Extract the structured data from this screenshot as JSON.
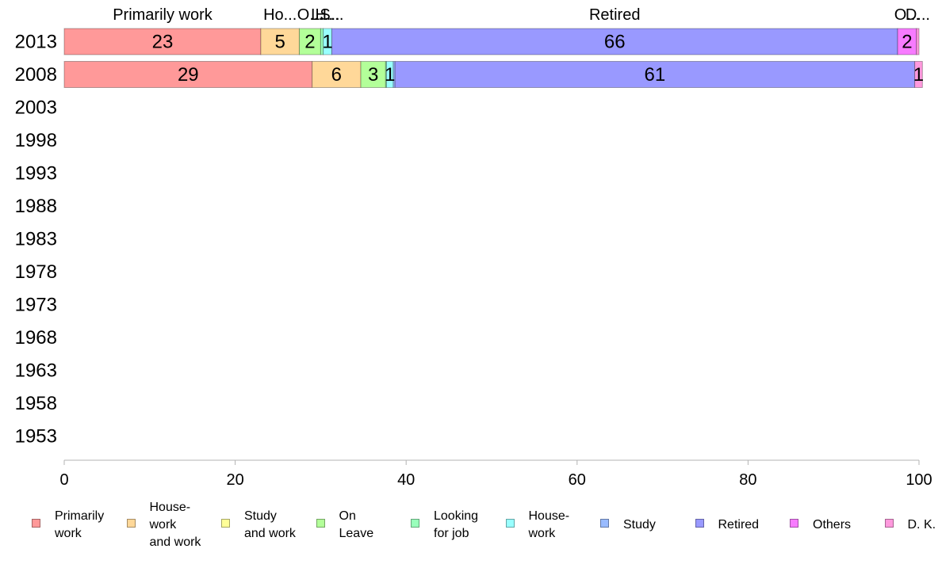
{
  "chart_data": {
    "type": "bar",
    "orientation": "horizontal",
    "stacked": true,
    "categories": [
      "2013",
      "2008",
      "2003",
      "1998",
      "1993",
      "1988",
      "1983",
      "1978",
      "1973",
      "1968",
      "1963",
      "1958",
      "1953"
    ],
    "series": [
      {
        "name": "Primarily work",
        "legend_label": "Primarily\nwork",
        "color": "#ff9999",
        "values": [
          23,
          29,
          null,
          null,
          null,
          null,
          null,
          null,
          null,
          null,
          null,
          null,
          null
        ],
        "labels": [
          "23",
          "29"
        ],
        "top_label": "Primarily work"
      },
      {
        "name": "House-work and work",
        "legend_label": "House-\nwork\nand work",
        "color": "#ffd899",
        "values": [
          4.5,
          5.7,
          null,
          null,
          null,
          null,
          null,
          null,
          null,
          null,
          null,
          null,
          null
        ],
        "labels": [
          "5",
          "6"
        ],
        "top_label": "Ho..."
      },
      {
        "name": "Study and work",
        "legend_label": "Study\nand work",
        "color": "#ffff99",
        "values": [
          0,
          0,
          null,
          null,
          null,
          null,
          null,
          null,
          null,
          null,
          null,
          null,
          null
        ],
        "labels": [
          "",
          ""
        ],
        "top_label": ""
      },
      {
        "name": "On Leave",
        "legend_label": "On\nLeave",
        "color": "#b3ff99",
        "values": [
          2.5,
          2.9,
          null,
          null,
          null,
          null,
          null,
          null,
          null,
          null,
          null,
          null,
          null
        ],
        "labels": [
          "2",
          "3"
        ],
        "top_label": "O..."
      },
      {
        "name": "Looking for job",
        "legend_label": "Looking\nfor job",
        "color": "#99ffbb",
        "values": [
          0.3,
          0.1,
          null,
          null,
          null,
          null,
          null,
          null,
          null,
          null,
          null,
          null,
          null
        ],
        "labels": [
          "",
          ""
        ],
        "top_label": "L..."
      },
      {
        "name": "House-work",
        "legend_label": "House-\nwork",
        "color": "#99ffff",
        "values": [
          1.0,
          0.8,
          null,
          null,
          null,
          null,
          null,
          null,
          null,
          null,
          null,
          null,
          null
        ],
        "labels": [
          "1",
          "1"
        ],
        "top_label": "H..."
      },
      {
        "name": "Study",
        "legend_label": "Study",
        "color": "#99bbff",
        "values": [
          0,
          0.2,
          null,
          null,
          null,
          null,
          null,
          null,
          null,
          null,
          null,
          null,
          null
        ],
        "labels": [
          "",
          ""
        ],
        "top_label": "S..."
      },
      {
        "name": "Retired",
        "legend_label": "Retired",
        "color": "#9999ff",
        "values": [
          66.2,
          60.8,
          null,
          null,
          null,
          null,
          null,
          null,
          null,
          null,
          null,
          null,
          null
        ],
        "labels": [
          "66",
          "61"
        ],
        "top_label": "Retired"
      },
      {
        "name": "Others",
        "legend_label": "Others",
        "color": "#f77bff",
        "values": [
          2.2,
          0,
          null,
          null,
          null,
          null,
          null,
          null,
          null,
          null,
          null,
          null,
          null
        ],
        "labels": [
          "2",
          ""
        ],
        "top_label": "O..."
      },
      {
        "name": "D. K.",
        "legend_label": "D. K.",
        "color": "#ff99dd",
        "values": [
          0.3,
          0.9,
          null,
          null,
          null,
          null,
          null,
          null,
          null,
          null,
          null,
          null,
          null
        ],
        "labels": [
          "",
          "1"
        ],
        "top_label": "D..."
      }
    ],
    "xlim": [
      0,
      100
    ],
    "x_ticks": [
      "0",
      "20",
      "40",
      "60",
      "80",
      "100"
    ],
    "xlabel": "",
    "ylabel": "",
    "title": "",
    "grid": false,
    "legend_position": "bottom"
  }
}
